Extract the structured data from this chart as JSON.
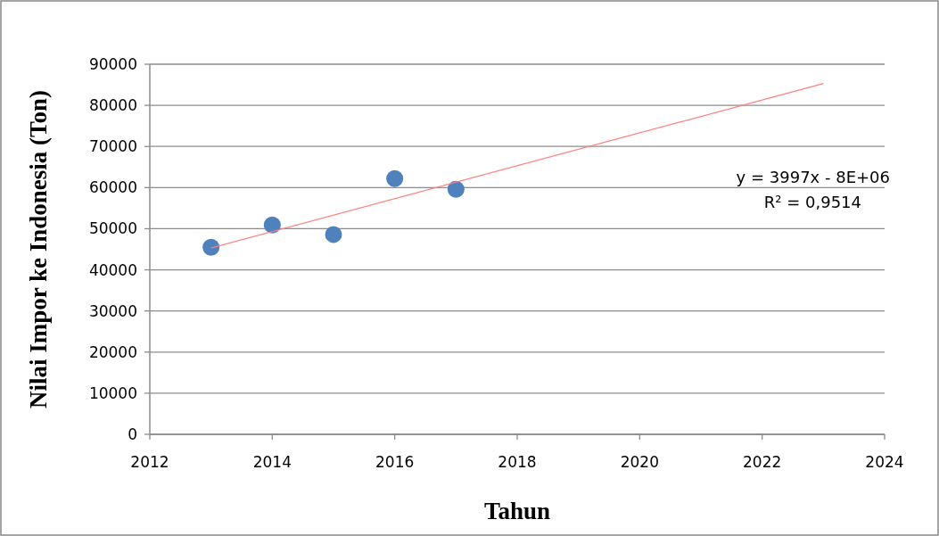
{
  "chart_data": {
    "type": "scatter",
    "xlabel": "Tahun",
    "ylabel": "Nilai Impor ke Indonesia (Ton)",
    "xlim": [
      2012,
      2024
    ],
    "xticks": [
      2012,
      2014,
      2016,
      2018,
      2020,
      2022,
      2024
    ],
    "ylim": [
      0,
      90000
    ],
    "yticks": [
      0,
      10000,
      20000,
      30000,
      40000,
      50000,
      60000,
      70000,
      80000,
      90000
    ],
    "grid": "y",
    "annotations": [
      "y = 3997x - 8E+06",
      "R² = 0,9514"
    ],
    "series": [
      {
        "marker": "circle",
        "color": "#4f81bd",
        "x": [
          2013,
          2014,
          2015,
          2016,
          2017
        ],
        "values": [
          45500,
          50900,
          48600,
          62200,
          59600
        ]
      },
      {
        "type": "line",
        "color": "#ff8080",
        "x": [
          2013,
          2023
        ],
        "values": [
          45300,
          85300
        ]
      }
    ]
  }
}
